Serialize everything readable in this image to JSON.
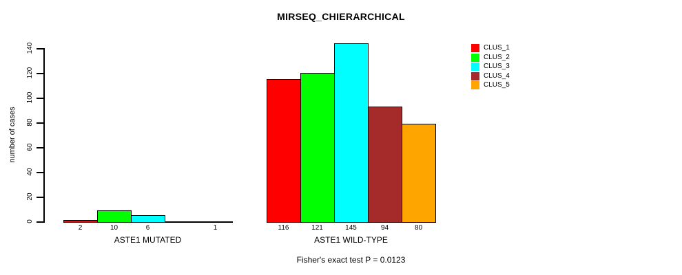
{
  "chart_data": {
    "type": "bar",
    "title": "MIRSEQ_CHIERARCHICAL",
    "ylabel": "number of cases",
    "xlabel": "",
    "ylim": [
      0,
      145
    ],
    "yticks": [
      0,
      20,
      40,
      60,
      80,
      100,
      120,
      140
    ],
    "grid": false,
    "legend_position": "right",
    "series": [
      {
        "name": "CLUS_1",
        "color": "#FF0000"
      },
      {
        "name": "CLUS_2",
        "color": "#00FF00"
      },
      {
        "name": "CLUS_3",
        "color": "#00FFFF"
      },
      {
        "name": "CLUS_4",
        "color": "#A52A2A"
      },
      {
        "name": "CLUS_5",
        "color": "#FFA500"
      }
    ],
    "groups": [
      {
        "label": "ASTE1 MUTATED",
        "values": [
          2,
          10,
          6,
          0,
          1
        ],
        "value_labels": [
          "2",
          "10",
          "6",
          "",
          "1"
        ]
      },
      {
        "label": "ASTE1 WILD-TYPE",
        "values": [
          116,
          121,
          145,
          94,
          80
        ],
        "value_labels": [
          "116",
          "121",
          "145",
          "94",
          "80"
        ]
      }
    ],
    "annotation": "Fisher's exact test P = 0.0123"
  }
}
